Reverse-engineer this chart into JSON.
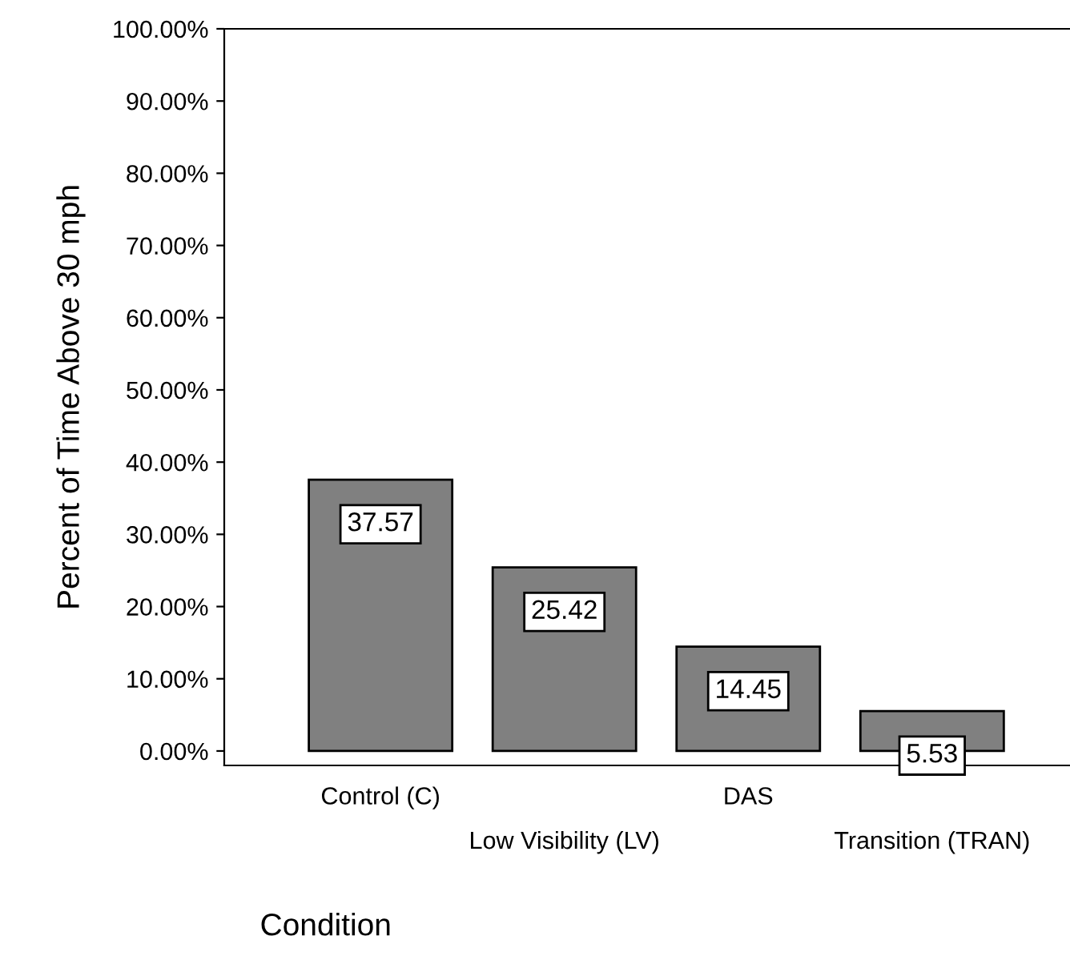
{
  "chart_data": {
    "type": "bar",
    "xlabel": "Condition",
    "ylabel": "Percent of Time Above 30 mph",
    "categories": [
      "Control (C)",
      "Low Visibility (LV)",
      "DAS",
      "Transition (TRAN)"
    ],
    "values": [
      37.57,
      25.42,
      14.45,
      5.53
    ],
    "color": "#808080",
    "data_labels": true,
    "ylim": [
      -2,
      100
    ],
    "yticks": [
      {
        "value": 0,
        "label": "0.00%"
      },
      {
        "value": 10,
        "label": "10.00%"
      },
      {
        "value": 20,
        "label": "20.00%"
      },
      {
        "value": 30,
        "label": "30.00%"
      },
      {
        "value": 40,
        "label": "40.00%"
      },
      {
        "value": 50,
        "label": "50.00%"
      },
      {
        "value": 60,
        "label": "60.00%"
      },
      {
        "value": 70,
        "label": "70.00%"
      },
      {
        "value": 80,
        "label": "80.00%"
      },
      {
        "value": 90,
        "label": "90.00%"
      },
      {
        "value": 100,
        "label": "100.00%"
      }
    ],
    "grid": false,
    "legend": false
  }
}
